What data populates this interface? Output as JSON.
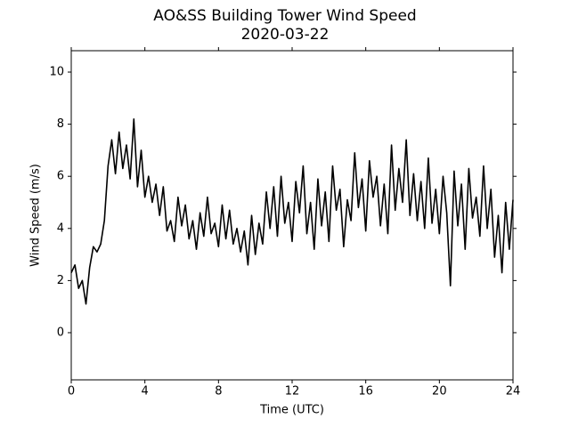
{
  "chart_data": {
    "type": "line",
    "title": "AO&SS Building Tower Wind Speed",
    "subtitle": "2020-03-22",
    "x_label": "Time (UTC)",
    "y_label": "Wind Speed (m/s)",
    "color": "#000000",
    "xlim": [
      0,
      24
    ],
    "xticks": [
      0,
      4,
      8,
      12,
      16,
      20,
      24
    ],
    "ylim": [
      -1.81,
      10.82
    ],
    "yticks": [
      0,
      2,
      4,
      6,
      8,
      10
    ],
    "x": [
      0,
      0.2,
      0.4,
      0.6,
      0.8,
      1,
      1.2,
      1.4,
      1.6,
      1.8,
      2,
      2.2,
      2.4,
      2.6,
      2.8,
      3,
      3.2,
      3.4,
      3.6,
      3.8,
      4,
      4.2,
      4.4,
      4.6,
      4.8,
      5,
      5.2,
      5.4,
      5.6,
      5.8,
      6,
      6.2,
      6.4,
      6.6,
      6.8,
      7,
      7.2,
      7.4,
      7.6,
      7.8,
      8,
      8.2,
      8.4,
      8.6,
      8.8,
      9,
      9.2,
      9.4,
      9.6,
      9.8,
      10,
      10.2,
      10.4,
      10.6,
      10.8,
      11,
      11.2,
      11.4,
      11.6,
      11.8,
      12,
      12.2,
      12.4,
      12.6,
      12.8,
      13,
      13.2,
      13.4,
      13.6,
      13.8,
      14,
      14.2,
      14.4,
      14.6,
      14.8,
      15,
      15.2,
      15.4,
      15.6,
      15.8,
      16,
      16.2,
      16.4,
      16.6,
      16.8,
      17,
      17.2,
      17.4,
      17.6,
      17.8,
      18,
      18.2,
      18.4,
      18.6,
      18.8,
      19,
      19.2,
      19.4,
      19.6,
      19.8,
      20,
      20.2,
      20.4,
      20.6,
      20.8,
      21,
      21.2,
      21.4,
      21.6,
      21.8,
      22,
      22.2,
      22.4,
      22.6,
      22.8,
      23,
      23.2,
      23.4,
      23.6,
      23.8,
      24
    ],
    "values": [
      2.3,
      2.6,
      1.7,
      2.0,
      1.1,
      2.5,
      3.3,
      3.1,
      3.4,
      4.3,
      6.4,
      7.4,
      6.1,
      7.7,
      6.3,
      7.2,
      5.9,
      8.2,
      5.6,
      7.0,
      5.2,
      6.0,
      5.0,
      5.7,
      4.5,
      5.6,
      3.9,
      4.3,
      3.5,
      5.2,
      4.1,
      4.9,
      3.6,
      4.3,
      3.2,
      4.6,
      3.7,
      5.2,
      3.8,
      4.2,
      3.3,
      4.9,
      3.6,
      4.7,
      3.4,
      4.0,
      3.1,
      3.9,
      2.6,
      4.5,
      3.0,
      4.2,
      3.4,
      5.4,
      4.0,
      5.6,
      3.7,
      6.0,
      4.2,
      5.0,
      3.5,
      5.8,
      4.6,
      6.4,
      3.8,
      5.0,
      3.2,
      5.9,
      4.1,
      5.4,
      3.5,
      6.4,
      4.7,
      5.5,
      3.3,
      5.1,
      4.3,
      6.9,
      4.8,
      5.9,
      3.9,
      6.6,
      5.2,
      6.0,
      4.1,
      5.7,
      3.8,
      7.2,
      4.7,
      6.3,
      5.0,
      7.4,
      4.5,
      6.1,
      4.3,
      5.8,
      4.0,
      6.7,
      4.2,
      5.5,
      3.8,
      6.0,
      4.6,
      1.8,
      6.2,
      4.1,
      5.7,
      3.2,
      6.3,
      4.4,
      5.2,
      3.7,
      6.4,
      4.0,
      5.5,
      2.9,
      4.5,
      2.3,
      5.0,
      3.2,
      5.1
    ]
  }
}
